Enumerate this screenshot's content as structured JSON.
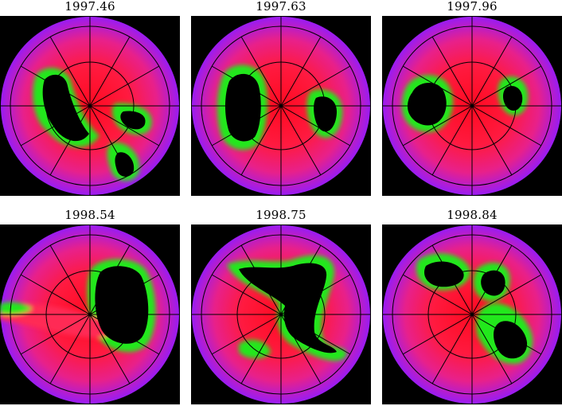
{
  "panels": [
    {
      "title": "1997.46"
    },
    {
      "title": "1997.63"
    },
    {
      "title": "1997.96"
    },
    {
      "title": "1998.54"
    },
    {
      "title": "1998.75"
    },
    {
      "title": "1998.84"
    }
  ],
  "colors": {
    "background": "#000000",
    "disk_edge": "#9a1cf2",
    "disk_mid": "#ff1a3a",
    "disk_center": "#ff0010",
    "halo": "#22e81a",
    "core": "#000000",
    "grid_line": "#000000"
  }
}
